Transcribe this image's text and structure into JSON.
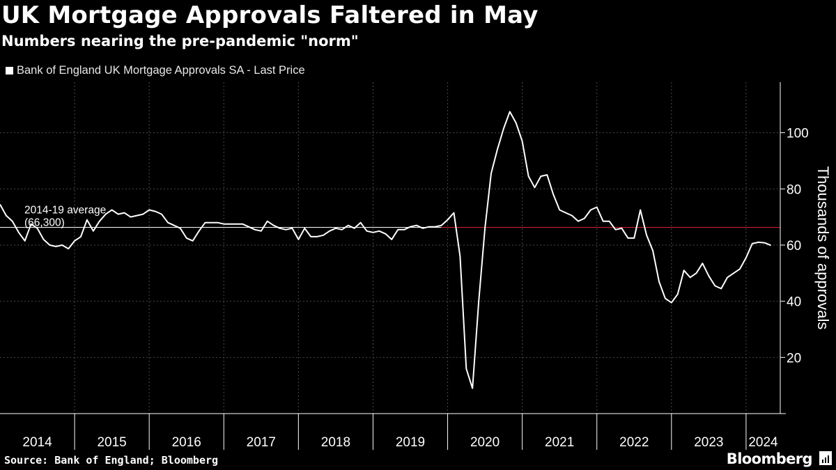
{
  "title": "UK Mortgage Approvals Faltered in May",
  "subtitle": "Numbers nearing the pre-pandemic \"norm\"",
  "legend": {
    "label": "Bank of England UK Mortgage Approvals SA - Last Price",
    "color": "#ffffff"
  },
  "footer": {
    "source": "Source: Bank of England; Bloomberg",
    "brand": "Bloomberg"
  },
  "colors": {
    "background": "#000000",
    "line": "#ffffff",
    "average_line": "#cc1f2f",
    "grid": "#4a4a4a"
  },
  "chart_data": {
    "type": "line",
    "title": "UK Mortgage Approvals Faltered in May",
    "subtitle": "Numbers nearing the pre-pandemic \"norm\"",
    "xlabel": "",
    "ylabel": "Thousands of approvals",
    "yaxis_position": "right",
    "ylim": [
      0,
      118
    ],
    "yticks": [
      20,
      40,
      60,
      80,
      100
    ],
    "x_start": "2014-01",
    "x_end": "2024-05",
    "xticks": [
      "2014",
      "2015",
      "2016",
      "2017",
      "2018",
      "2019",
      "2020",
      "2021",
      "2022",
      "2023",
      "2024"
    ],
    "grid": true,
    "legend_position": "top-left",
    "series": [
      {
        "name": "Bank of England UK Mortgage Approvals SA - Last Price",
        "frequency": "monthly",
        "values": [
          74.5,
          70.5,
          68.5,
          64.5,
          61.5,
          67.5,
          66.0,
          62.0,
          60.0,
          59.5,
          60.0,
          58.7,
          61.5,
          63.0,
          69.0,
          65.0,
          68.5,
          71.0,
          72.5,
          71.0,
          71.5,
          70.0,
          70.5,
          71.0,
          72.5,
          72.0,
          71.0,
          68.0,
          67.0,
          66.0,
          62.5,
          61.5,
          65.0,
          68.0,
          68.0,
          68.0,
          67.5,
          67.5,
          67.5,
          67.5,
          66.5,
          65.5,
          65.0,
          68.5,
          67.0,
          66.0,
          65.5,
          66.0,
          62.0,
          66.0,
          63.0,
          63.0,
          63.5,
          65.0,
          66.0,
          65.5,
          67.0,
          66.0,
          68.0,
          65.0,
          64.5,
          65.0,
          64.0,
          62.0,
          65.5,
          65.5,
          66.5,
          67.0,
          66.0,
          66.5,
          66.5,
          67.0,
          69.0,
          71.5,
          56.0,
          16.0,
          9.0,
          40.0,
          66.0,
          85.5,
          94.0,
          101.5,
          107.5,
          103.5,
          97.0,
          84.5,
          80.5,
          84.5,
          85.0,
          78.0,
          72.5,
          71.5,
          70.5,
          68.5,
          69.5,
          72.5,
          73.5,
          68.5,
          68.5,
          65.5,
          66.0,
          62.5,
          62.5,
          72.5,
          63.5,
          58.0,
          47.0,
          41.0,
          39.5,
          42.5,
          51.0,
          48.5,
          50.0,
          53.5,
          49.0,
          45.5,
          44.5,
          48.5,
          50.0,
          51.5,
          55.5,
          60.5,
          61.0,
          60.8,
          59.9
        ]
      }
    ],
    "annotations": [
      {
        "text": "2014-19 average",
        "subtext": "(66,300)",
        "value": 66.3,
        "type": "horizontal-line"
      }
    ]
  }
}
